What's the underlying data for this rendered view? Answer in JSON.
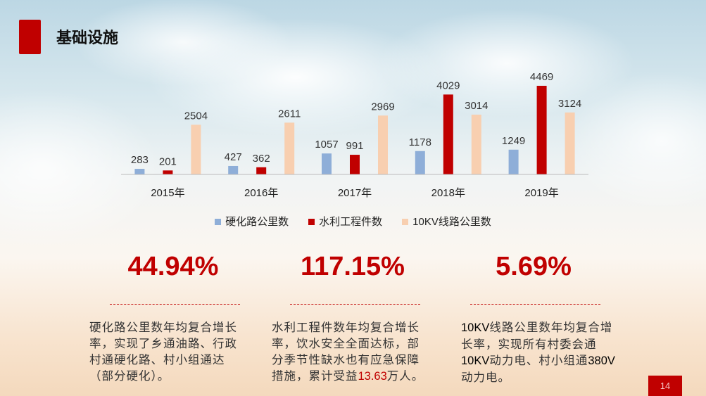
{
  "title": "基础设施",
  "page_number": "14",
  "chart_data": {
    "type": "bar",
    "categories": [
      "2015年",
      "2016年",
      "2017年",
      "2018年",
      "2019年"
    ],
    "series": [
      {
        "name": "硬化路公里数",
        "color": "#8eaed8",
        "values": [
          283,
          427,
          1057,
          1178,
          1249
        ]
      },
      {
        "name": "水利工程件数",
        "color": "#c00000",
        "values": [
          201,
          362,
          991,
          4029,
          4469
        ]
      },
      {
        "name": "10KV线路公里数",
        "color": "#f8cfb0",
        "values": [
          2504,
          2611,
          2969,
          3014,
          3124
        ]
      }
    ],
    "ylim": [
      0,
      5000
    ],
    "legend": "bottom"
  },
  "stats": [
    {
      "value": "44.94%",
      "text": "硬化路公里数年均复合增长率，实现了乡通油路、行政村通硬化路、村小组通达（部分硬化）。"
    },
    {
      "value": "117.15%",
      "text_before": "水利工程件数年均复合增长率，饮水安全全面达标，部分季节性缺水也有应急保障措施，累计受益",
      "highlight": "13.63",
      "text_after": "万人。"
    },
    {
      "value": "5.69%",
      "p1": "10KV",
      "p2": "线路公里数年均复合增长率，实现所有村委会通",
      "p3": "10KV",
      "p4": "动力电、村小组通",
      "p5": "380V",
      "p6": "动力电。"
    }
  ]
}
